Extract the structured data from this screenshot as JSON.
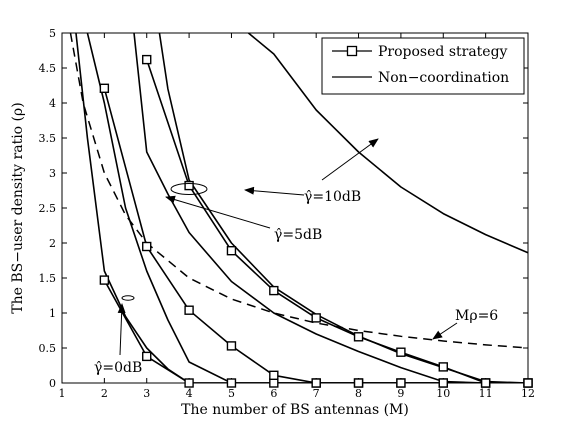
{
  "chart_data": {
    "type": "line",
    "xlabel": "The number of BS antennas (M)",
    "ylabel": "The BS−user density ratio (ρ)",
    "xlim": [
      1,
      12
    ],
    "ylim": [
      0,
      5
    ],
    "xticks": [
      "1",
      "2",
      "3",
      "4",
      "5",
      "6",
      "7",
      "8",
      "9",
      "10",
      "11",
      "12"
    ],
    "yticks": [
      "0",
      "0.5",
      "1",
      "1.5",
      "2",
      "2.5",
      "3",
      "3.5",
      "4",
      "4.5",
      "5"
    ],
    "grid": false,
    "legend": {
      "position": "top-right",
      "entries": [
        "Proposed strategy",
        "Non−coordination"
      ]
    },
    "series": [
      {
        "group": "Proposed strategy",
        "style": "solid-square-markers",
        "x": [
          2,
          3,
          4,
          5,
          6,
          7,
          8,
          9,
          10,
          11,
          12
        ],
        "y": [
          1.47,
          0.38,
          0,
          0,
          0,
          0,
          0,
          0,
          0,
          0,
          0
        ]
      },
      {
        "group": "Proposed strategy",
        "style": "solid-square-markers",
        "x": [
          2,
          3,
          4,
          5,
          6,
          7,
          8,
          9,
          10,
          11,
          12
        ],
        "y": [
          4.21,
          1.95,
          1.04,
          0.53,
          0.11,
          0,
          0,
          0,
          0,
          0,
          0
        ]
      },
      {
        "group": "Proposed strategy",
        "style": "solid-square-markers",
        "x": [
          3,
          4,
          5,
          6,
          7,
          8,
          9,
          10,
          11,
          12
        ],
        "y": [
          4.62,
          2.82,
          1.89,
          1.32,
          0.93,
          0.66,
          0.44,
          0.23,
          0,
          0
        ]
      },
      {
        "group": "Non−coordination",
        "style": "solid",
        "x": [
          1.33,
          1.6,
          2,
          2.5,
          3,
          3.5,
          4,
          5,
          6,
          7,
          8,
          9,
          10,
          11,
          12
        ],
        "y": [
          5.0,
          3.5,
          1.6,
          0.95,
          0.5,
          0.2,
          0,
          0,
          0,
          0,
          0,
          0,
          0,
          0,
          0
        ]
      },
      {
        "group": "Non−coordination",
        "style": "solid",
        "x": [
          1.6,
          2,
          2.5,
          3,
          3.5,
          4,
          5,
          6,
          7,
          8,
          9,
          10,
          11
        ],
        "y": [
          5.0,
          4.0,
          2.5,
          1.6,
          0.9,
          0.3,
          0,
          0,
          0,
          0,
          0,
          0,
          0
        ]
      },
      {
        "group": "Non−coordination",
        "style": "solid",
        "x": [
          2.7,
          3,
          3.5,
          4,
          5,
          6,
          7,
          8,
          9,
          10,
          11,
          12
        ],
        "y": [
          5.0,
          3.3,
          2.7,
          2.15,
          1.45,
          1.0,
          0.7,
          0.45,
          0.22,
          0.02,
          0,
          0
        ]
      },
      {
        "group": "Non−coordination",
        "style": "solid",
        "x": [
          3.3,
          3.5,
          4,
          5,
          6,
          7,
          8,
          9,
          10,
          11,
          12
        ],
        "y": [
          5.0,
          4.2,
          2.9,
          2.0,
          1.37,
          0.98,
          0.67,
          0.42,
          0.22,
          0.02,
          0
        ]
      },
      {
        "group": "Non−coordination",
        "style": "solid",
        "x": [
          5.4,
          6,
          7,
          8,
          9,
          10,
          11,
          12
        ],
        "y": [
          5.0,
          4.7,
          3.9,
          3.3,
          2.8,
          2.42,
          2.12,
          1.86
        ]
      },
      {
        "group": "Mρ=6",
        "style": "dashed",
        "x": [
          1.2,
          1.5,
          2,
          2.5,
          3,
          4,
          5,
          6,
          7,
          8,
          9,
          10,
          11,
          12
        ],
        "y": [
          5.0,
          4.0,
          3.0,
          2.4,
          2.0,
          1.5,
          1.2,
          1.0,
          0.857,
          0.75,
          0.667,
          0.6,
          0.545,
          0.5
        ]
      }
    ],
    "annotations": {
      "gamma10": "γ̂=10dB",
      "gamma5": "γ̂=5dB",
      "gamma0": "γ̂=0dB",
      "mrho": "Mρ=6"
    }
  }
}
